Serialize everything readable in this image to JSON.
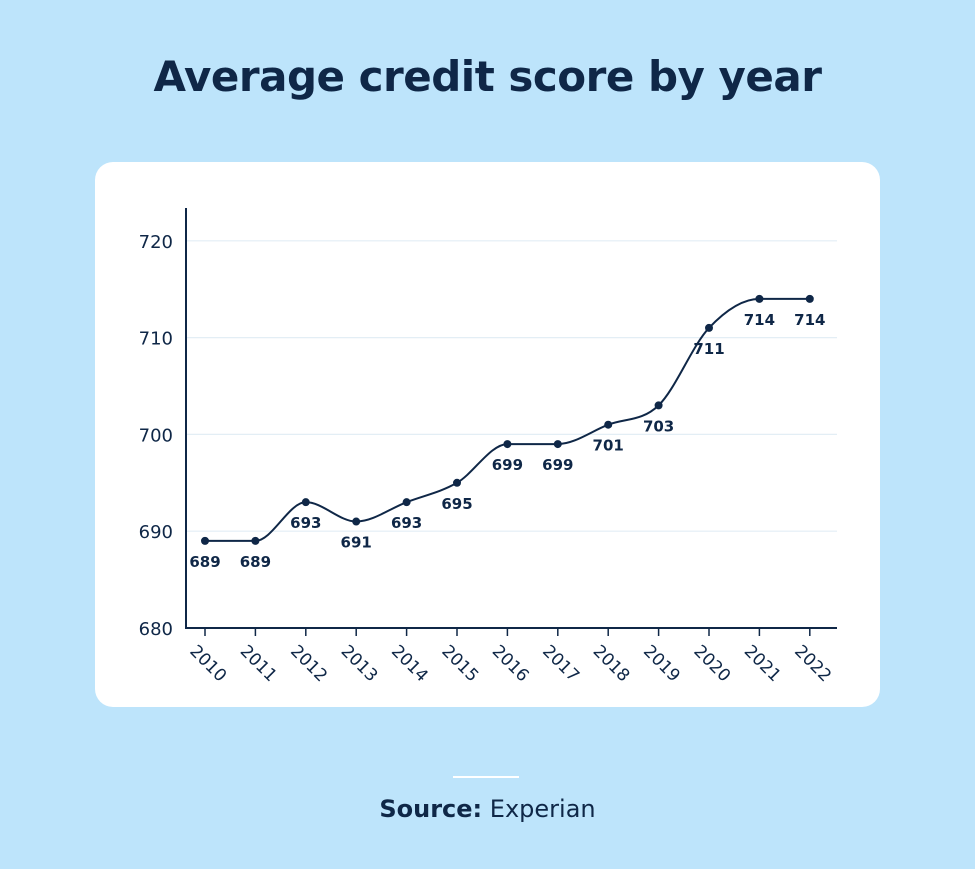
{
  "title": "Average credit score by year",
  "source": {
    "label": "Source:",
    "value": "Experian"
  },
  "colors": {
    "background": "#bde4fb",
    "card": "#ffffff",
    "ink": "#0f2747",
    "grid": "#e3eef5"
  },
  "chart_data": {
    "type": "line",
    "title": "Average credit score by year",
    "xlabel": "",
    "ylabel": "",
    "categories": [
      "2010",
      "2011",
      "2012",
      "2013",
      "2014",
      "2015",
      "2016",
      "2017",
      "2018",
      "2019",
      "2020",
      "2021",
      "2022"
    ],
    "values": [
      689,
      689,
      693,
      691,
      693,
      695,
      699,
      699,
      701,
      703,
      711,
      714,
      714
    ],
    "y_ticks": [
      680,
      690,
      700,
      710,
      720
    ],
    "ylim": [
      680,
      723
    ],
    "grid": "horizontal",
    "legend": "none"
  }
}
